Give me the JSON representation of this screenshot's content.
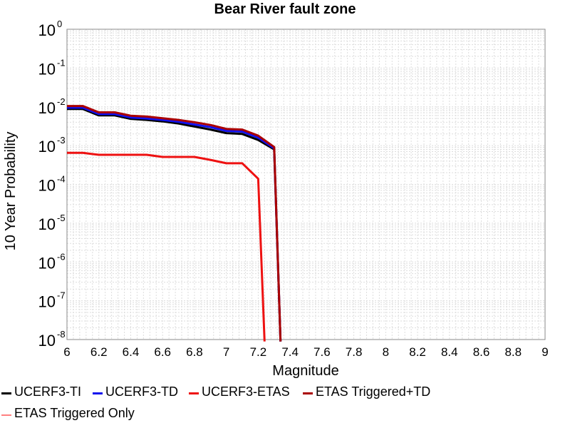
{
  "chart_data": {
    "type": "line",
    "title": "Bear River fault zone",
    "xlabel": "Magnitude",
    "ylabel": "10 Year Probability",
    "xlim": [
      6,
      9
    ],
    "ylim": [
      1e-08,
      1
    ],
    "yscale": "log",
    "grid": true,
    "legend_position": "bottom",
    "x_ticks": [
      "6",
      "6.2",
      "6.4",
      "6.6",
      "6.8",
      "7",
      "7.2",
      "7.4",
      "7.6",
      "7.8",
      "8",
      "8.2",
      "8.4",
      "8.6",
      "8.8",
      "9"
    ],
    "y_ticks": [
      {
        "base": "10",
        "exp": "0",
        "value": 1
      },
      {
        "base": "10",
        "exp": "-1",
        "value": 0.1
      },
      {
        "base": "10",
        "exp": "-2",
        "value": 0.01
      },
      {
        "base": "10",
        "exp": "-3",
        "value": 0.001
      },
      {
        "base": "10",
        "exp": "-4",
        "value": 0.0001
      },
      {
        "base": "10",
        "exp": "-5",
        "value": 1e-05
      },
      {
        "base": "10",
        "exp": "-6",
        "value": 1e-06
      },
      {
        "base": "10",
        "exp": "-7",
        "value": 1e-07
      },
      {
        "base": "10",
        "exp": "-8",
        "value": 1e-08
      }
    ],
    "series": [
      {
        "name": "ETAS Triggered Only",
        "color": "#ff8080",
        "width": 1.5,
        "x": [],
        "y": []
      },
      {
        "name": "UCERF3-ETAS",
        "color": "#ee1111",
        "width": 3,
        "x": [
          6.0,
          6.1,
          6.2,
          6.3,
          6.4,
          6.5,
          6.6,
          6.7,
          6.8,
          6.9,
          7.0,
          7.1,
          7.2,
          7.24
        ],
        "y": [
          0.00065,
          0.00065,
          0.00058,
          0.00058,
          0.00058,
          0.00058,
          0.00051,
          0.00051,
          0.00051,
          0.00043,
          0.00035,
          0.00035,
          0.00014,
          1e-09
        ]
      },
      {
        "name": "UCERF3-TI",
        "color": "#000000",
        "width": 3,
        "x": [
          6.0,
          6.1,
          6.2,
          6.3,
          6.4,
          6.5,
          6.6,
          6.7,
          6.8,
          6.9,
          7.0,
          7.1,
          7.2,
          7.3,
          7.34
        ],
        "y": [
          0.0088,
          0.0088,
          0.006,
          0.006,
          0.0049,
          0.0046,
          0.0042,
          0.0037,
          0.0031,
          0.0026,
          0.0021,
          0.002,
          0.0014,
          0.0008,
          1e-09
        ]
      },
      {
        "name": "UCERF3-TD",
        "color": "#1111ee",
        "width": 3,
        "x": [
          6.0,
          6.1,
          6.2,
          6.3,
          6.4,
          6.5,
          6.6,
          6.7,
          6.8,
          6.9,
          7.0,
          7.1,
          7.2,
          7.3,
          7.34
        ],
        "y": [
          0.0095,
          0.0095,
          0.0065,
          0.0065,
          0.0053,
          0.005,
          0.0046,
          0.0041,
          0.0035,
          0.003,
          0.0024,
          0.0023,
          0.0016,
          0.00085,
          1e-09
        ]
      },
      {
        "name": "ETAS Triggered+TD",
        "color": "#aa0000",
        "width": 3,
        "x": [
          6.0,
          6.1,
          6.2,
          6.3,
          6.4,
          6.5,
          6.6,
          6.7,
          6.8,
          6.9,
          7.0,
          7.1,
          7.2,
          7.3,
          7.34
        ],
        "y": [
          0.0105,
          0.0105,
          0.0072,
          0.0072,
          0.0059,
          0.0056,
          0.0051,
          0.0046,
          0.004,
          0.0034,
          0.0027,
          0.0026,
          0.0018,
          0.00092,
          1e-09
        ]
      }
    ],
    "legend": [
      {
        "name": "UCERF3-TI",
        "color": "#000000"
      },
      {
        "name": "UCERF3-TD",
        "color": "#1111ee"
      },
      {
        "name": "UCERF3-ETAS",
        "color": "#ee1111"
      },
      {
        "name": "ETAS Triggered+TD",
        "color": "#aa0000"
      },
      {
        "name": "ETAS Triggered Only",
        "color": "#ff8080"
      }
    ]
  }
}
